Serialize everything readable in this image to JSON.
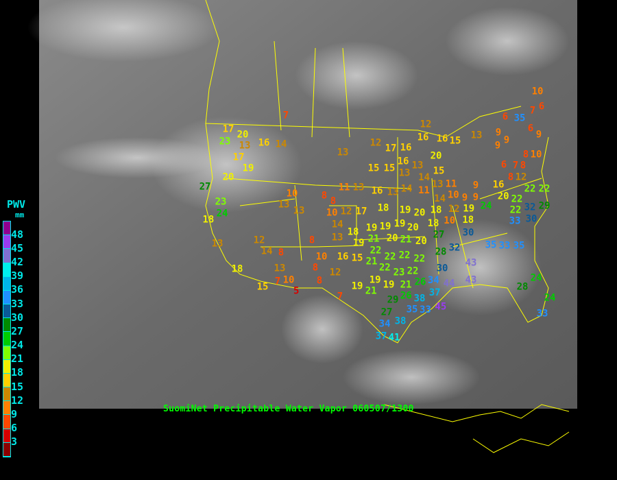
{
  "title": "SuomiNet Precipitable Water Vapor 060507/1300",
  "legend": {
    "title": "PWV",
    "unit": "mm",
    "labels": [
      "48",
      "45",
      "42",
      "39",
      "36",
      "33",
      "30",
      "27",
      "24",
      "21",
      "18",
      "15",
      "12",
      "9",
      "6",
      "3"
    ],
    "colors": [
      "#900090",
      "#9a3cf0",
      "#8070d0",
      "#00eeee",
      "#00b4e8",
      "#2090ff",
      "#0a5a98",
      "#008a00",
      "#00cc00",
      "#80ff00",
      "#f0f000",
      "#ffd000",
      "#cc8800",
      "#ff8000",
      "#ff4800",
      "#d80000",
      "#8a0000"
    ]
  },
  "stations": [
    7,
    17,
    20,
    23,
    13,
    16,
    14,
    17,
    19,
    20,
    27,
    23,
    24,
    18,
    13,
    12,
    14,
    8,
    13,
    7,
    10,
    5,
    15,
    18,
    10,
    13,
    13,
    8,
    8,
    10,
    12,
    14,
    13,
    8,
    10,
    8,
    8,
    12,
    7,
    13,
    12,
    17,
    16,
    15,
    15,
    16,
    13,
    11,
    13,
    16,
    13,
    14,
    17,
    18,
    19,
    20,
    18,
    18,
    19,
    19,
    19,
    19,
    20,
    21,
    20,
    21,
    20,
    16,
    15,
    21,
    22,
    22,
    22,
    22,
    22,
    22,
    23,
    21,
    26,
    19,
    19,
    21,
    19,
    26,
    29,
    27,
    38,
    35,
    33,
    38,
    34,
    37,
    41,
    12,
    16,
    16,
    15,
    20,
    13,
    14,
    15,
    13,
    11,
    11,
    10,
    14,
    9,
    12,
    10,
    19,
    18,
    18,
    9,
    24,
    9,
    16,
    20,
    13,
    9,
    9,
    9,
    6,
    35,
    7,
    6,
    9,
    10,
    6,
    6,
    7,
    8,
    8,
    12,
    8,
    10,
    22,
    22,
    22,
    22,
    32,
    30,
    29,
    33,
    27,
    30,
    28,
    32,
    30,
    34,
    37,
    44,
    45,
    43,
    43,
    35,
    33,
    35,
    24,
    28,
    24,
    33
  ]
}
